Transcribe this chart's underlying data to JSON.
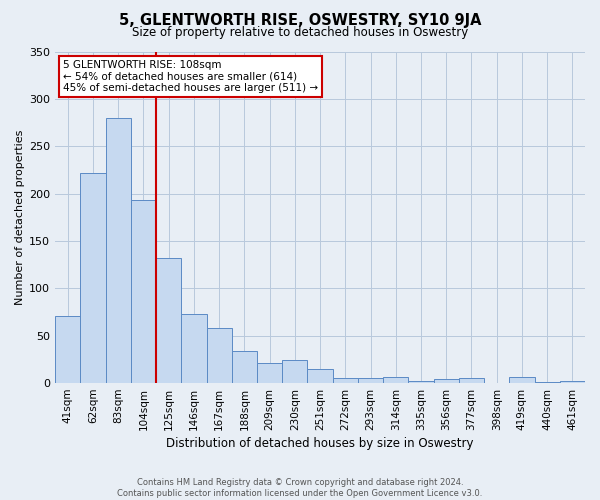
{
  "title": "5, GLENTWORTH RISE, OSWESTRY, SY10 9JA",
  "subtitle": "Size of property relative to detached houses in Oswestry",
  "xlabel": "Distribution of detached houses by size in Oswestry",
  "ylabel": "Number of detached properties",
  "categories": [
    "41sqm",
    "62sqm",
    "83sqm",
    "104sqm",
    "125sqm",
    "146sqm",
    "167sqm",
    "188sqm",
    "209sqm",
    "230sqm",
    "251sqm",
    "272sqm",
    "293sqm",
    "314sqm",
    "335sqm",
    "356sqm",
    "377sqm",
    "398sqm",
    "419sqm",
    "440sqm",
    "461sqm"
  ],
  "values": [
    71,
    222,
    280,
    193,
    132,
    73,
    58,
    34,
    21,
    24,
    15,
    5,
    5,
    6,
    2,
    4,
    5,
    0,
    6,
    1,
    2
  ],
  "bar_color": "#c6d9f0",
  "bar_edge_color": "#5b8ac5",
  "bar_edge_width": 0.7,
  "grid_color": "#b8c8dc",
  "background_color": "#e8eef5",
  "vline_color": "#cc0000",
  "vline_index": 3,
  "ylim": [
    0,
    350
  ],
  "yticks": [
    0,
    50,
    100,
    150,
    200,
    250,
    300,
    350
  ],
  "annotation_title": "5 GLENTWORTH RISE: 108sqm",
  "annotation_line1": "← 54% of detached houses are smaller (614)",
  "annotation_line2": "45% of semi-detached houses are larger (511) →",
  "annotation_box_color": "#ffffff",
  "annotation_border_color": "#cc0000",
  "footnote1": "Contains HM Land Registry data © Crown copyright and database right 2024.",
  "footnote2": "Contains public sector information licensed under the Open Government Licence v3.0."
}
